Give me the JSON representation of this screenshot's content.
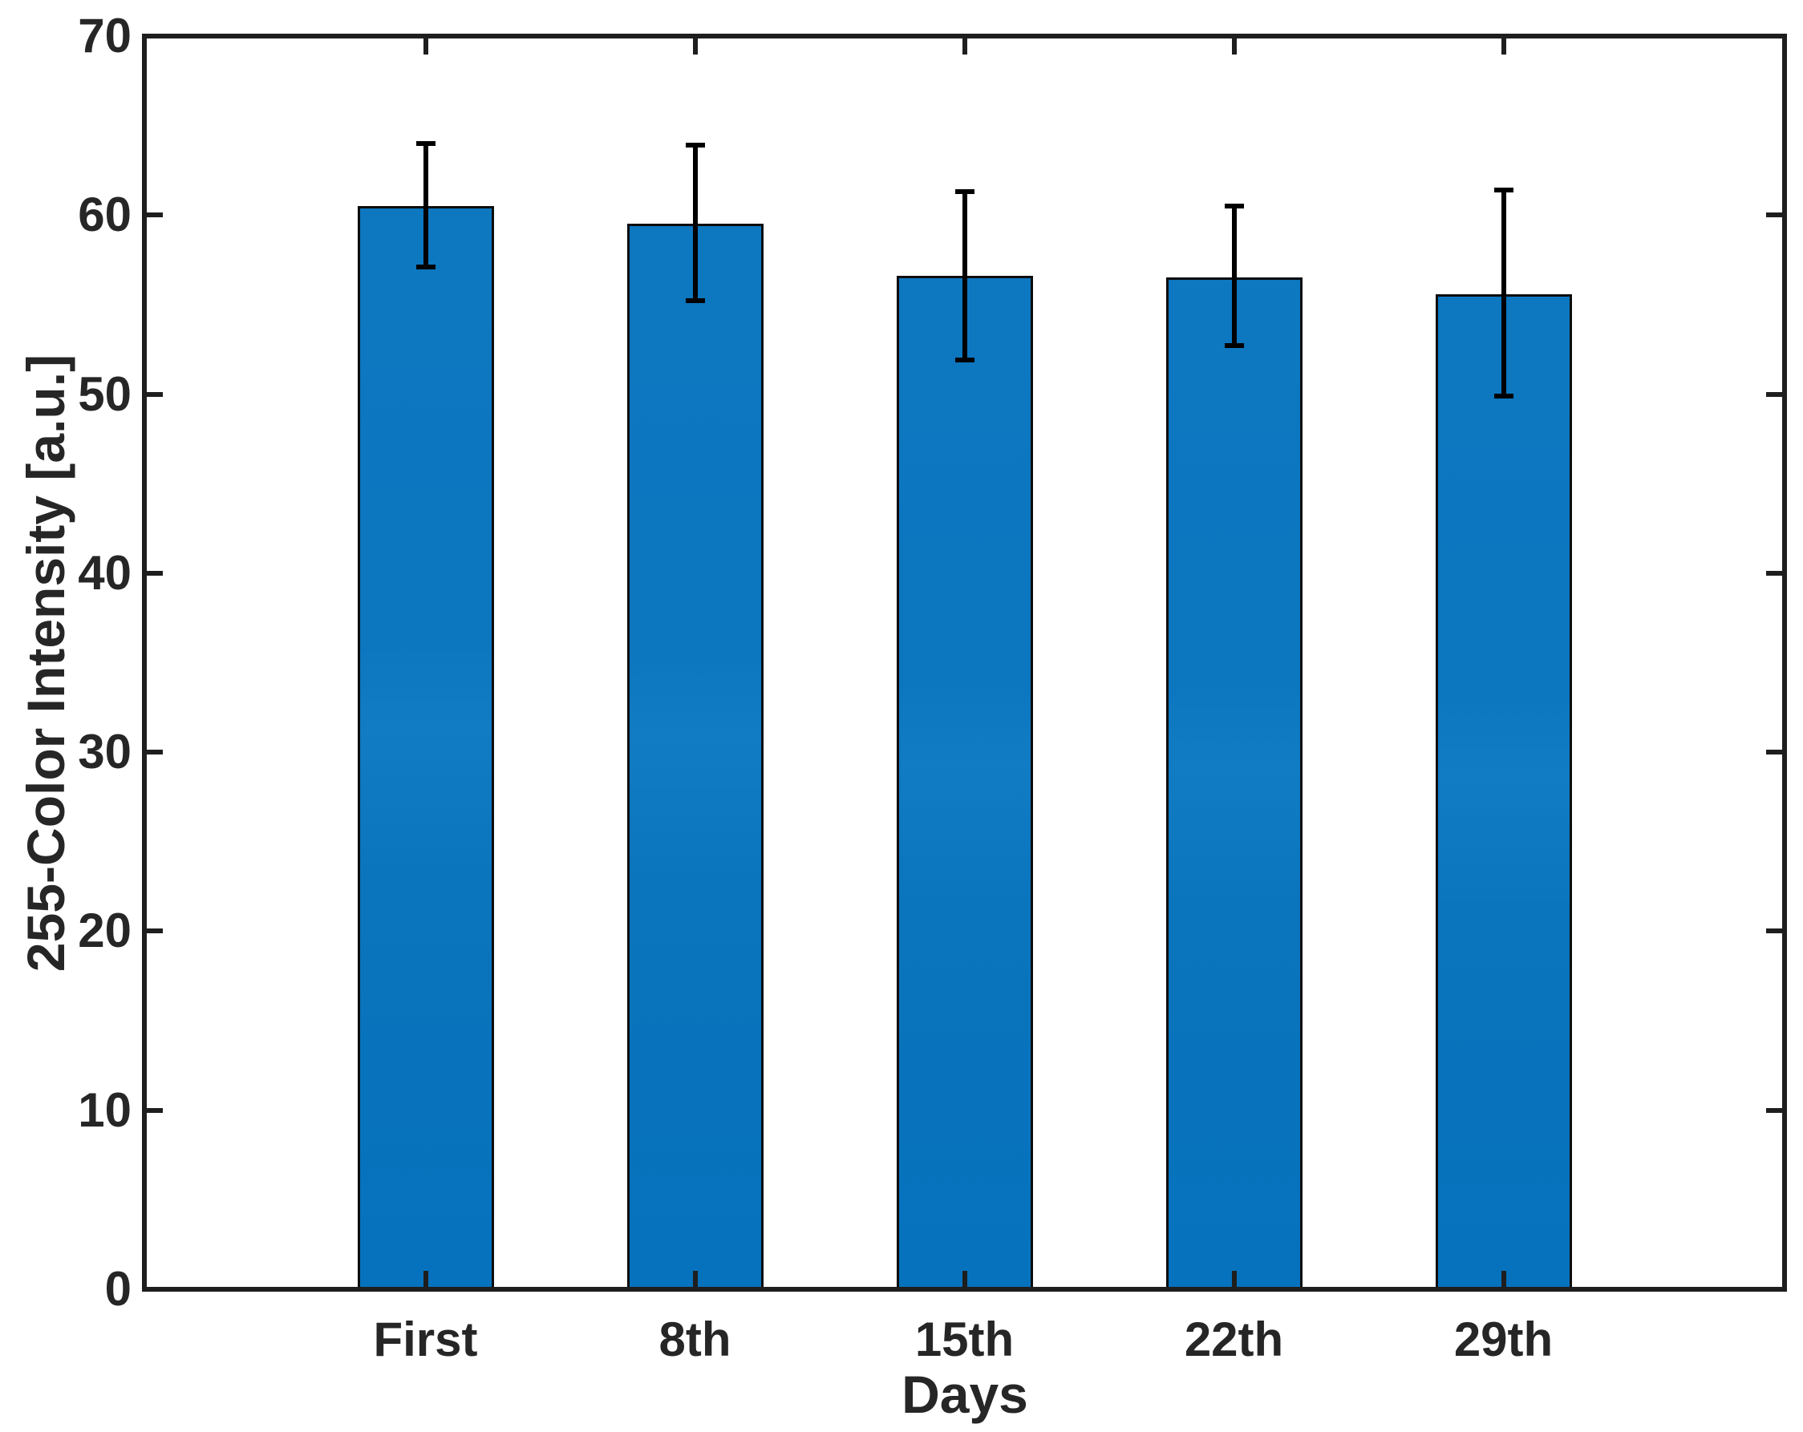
{
  "figure": {
    "background": "#ffffff"
  },
  "chart_data": {
    "type": "bar",
    "title": "",
    "xlabel": "Days",
    "ylabel": "255-Color Intensity [a.u.]",
    "categories": [
      "First",
      "8th",
      "15th",
      "22th",
      "29th"
    ],
    "values": [
      60.5,
      59.5,
      56.6,
      56.5,
      55.6
    ],
    "error_upper": [
      64.0,
      63.9,
      61.3,
      60.5,
      61.4
    ],
    "error_lower": [
      57.1,
      55.2,
      51.9,
      52.7,
      49.9
    ],
    "ylim": [
      0,
      70
    ],
    "yticks": [
      0,
      10,
      20,
      30,
      40,
      50,
      60,
      70
    ],
    "grid": false,
    "legend": null,
    "box": true,
    "bar_color": "#0072BD",
    "bar_edge_color": "#0d0d0d",
    "error_color": "#000000",
    "axis_color": "#1e1e1e",
    "text_color": "#262626"
  }
}
